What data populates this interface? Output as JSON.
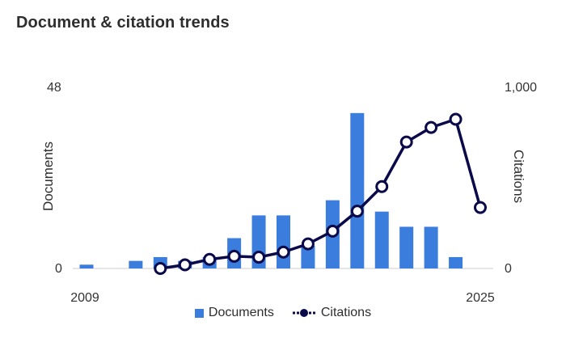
{
  "chart_data": {
    "type": "bar+line",
    "title": "Document & citation trends",
    "x": [
      2009,
      2010,
      2011,
      2012,
      2013,
      2014,
      2015,
      2016,
      2017,
      2018,
      2019,
      2020,
      2021,
      2022,
      2023,
      2024,
      2025
    ],
    "x_tick_labels": [
      "2009",
      "2025"
    ],
    "series": [
      {
        "name": "Documents",
        "type": "bar",
        "axis": "left",
        "color": "#3b7ddd",
        "values": [
          1,
          0,
          2,
          3,
          2,
          3,
          8,
          14,
          14,
          6,
          18,
          41,
          15,
          11,
          11,
          3,
          null
        ]
      },
      {
        "name": "Citations",
        "type": "line",
        "axis": "right",
        "color": "#0a0a4a",
        "values": [
          null,
          null,
          null,
          0,
          20,
          50,
          67,
          62,
          90,
          135,
          205,
          315,
          450,
          695,
          775,
          820,
          335
        ]
      }
    ],
    "y_left": {
      "label": "Documents",
      "range": [
        0,
        48
      ],
      "tick_labels": [
        "0",
        "48"
      ]
    },
    "y_right": {
      "label": "Citations",
      "range": [
        0,
        1000
      ],
      "tick_labels": [
        "0",
        "1,000"
      ]
    },
    "legend": {
      "placement": "bottom"
    }
  }
}
